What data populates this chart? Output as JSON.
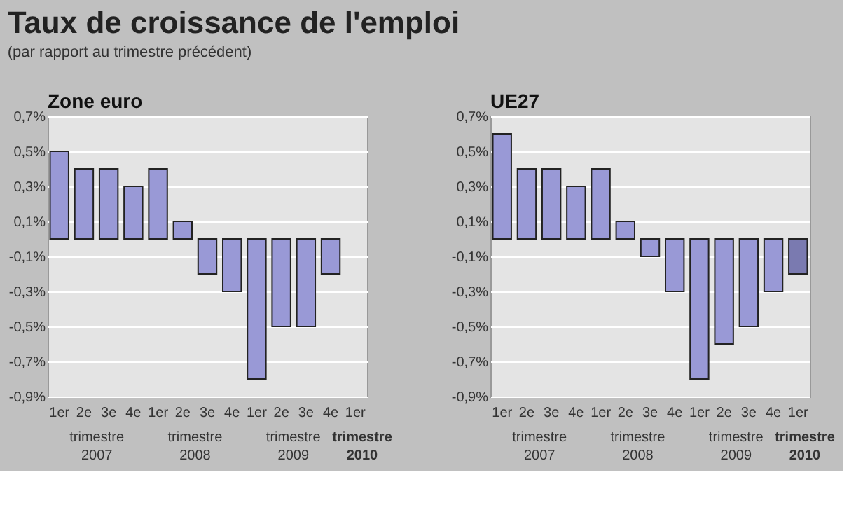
{
  "chart_data": [
    {
      "type": "bar",
      "title": "Taux de croissance de l'emploi",
      "subtitle": "(par rapport au trimestre précédent)",
      "categories": [
        "1er",
        "2e",
        "3e",
        "4e",
        "1er",
        "2e",
        "3e",
        "4e",
        "1er",
        "2e",
        "3e",
        "4e",
        "1er"
      ],
      "series": [
        {
          "name": "Zone euro",
          "color": "#9999d6",
          "values": [
            0.5,
            0.4,
            0.4,
            0.3,
            0.4,
            0.1,
            -0.2,
            -0.3,
            -0.8,
            -0.5,
            -0.5,
            -0.2,
            null
          ]
        }
      ],
      "ylim": [
        -0.9,
        0.7
      ],
      "yticks": [
        {
          "value": -0.9,
          "label": "-0,9%"
        },
        {
          "value": -0.7,
          "label": "-0,7%"
        },
        {
          "value": -0.5,
          "label": "-0,5%"
        },
        {
          "value": -0.3,
          "label": "-0,3%"
        },
        {
          "value": -0.1,
          "label": "-0,1%"
        },
        {
          "value": 0.1,
          "label": "0,1%"
        },
        {
          "value": 0.3,
          "label": "0,3%"
        },
        {
          "value": 0.5,
          "label": "0,5%"
        },
        {
          "value": 0.7,
          "label": "0,7%"
        }
      ],
      "grid": "y",
      "annotations": [
        "trimestre\n2007",
        "trimestre\n2008",
        "trimestre\n2009",
        "trimestre\n2010"
      ]
    },
    {
      "type": "bar",
      "categories": [
        "1er",
        "2e",
        "3e",
        "4e",
        "1er",
        "2e",
        "3e",
        "4e",
        "1er",
        "2e",
        "3e",
        "4e",
        "1er"
      ],
      "series": [
        {
          "name": "UE27",
          "values": [
            0.6,
            0.4,
            0.4,
            0.3,
            0.4,
            0.1,
            -0.1,
            -0.3,
            -0.8,
            -0.6,
            -0.5,
            -0.3,
            -0.2
          ]
        }
      ],
      "colors": [
        "#9999d6",
        "#9999d6",
        "#9999d6",
        "#9999d6",
        "#9999d6",
        "#9999d6",
        "#9999d6",
        "#9999d6",
        "#9999d6",
        "#9999d6",
        "#9999d6",
        "#9999d6",
        "#7a7ab0"
      ],
      "ylim": [
        -0.9,
        0.7
      ],
      "yticks": [
        {
          "value": -0.9,
          "label": "-0,9%"
        },
        {
          "value": -0.7,
          "label": "-0,7%"
        },
        {
          "value": -0.5,
          "label": "-0,5%"
        },
        {
          "value": -0.3,
          "label": "-0,3%"
        },
        {
          "value": -0.1,
          "label": "-0,1%"
        },
        {
          "value": 0.1,
          "label": "0,1%"
        },
        {
          "value": 0.3,
          "label": "0,3%"
        },
        {
          "value": 0.5,
          "label": "0,5%"
        },
        {
          "value": 0.7,
          "label": "0,7%"
        }
      ],
      "grid": "y",
      "annotations": [
        "trimestre\n2007",
        "trimestre\n2008",
        "trimestre\n2009",
        "trimestre\n2010"
      ]
    }
  ]
}
